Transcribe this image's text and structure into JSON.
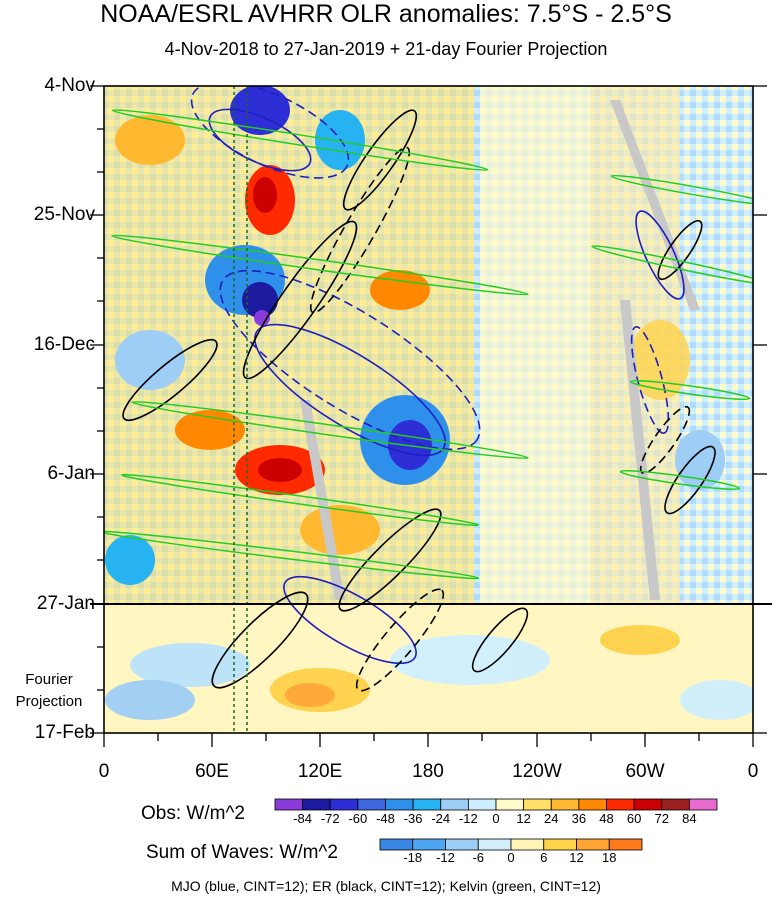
{
  "chart_data": {
    "type": "heatmap",
    "title": "NOAA/ESRL AVHRR OLR anomalies: 7.5°S - 2.5°S",
    "subtitle": "4-Nov-2018 to 27-Jan-2019 + 21-day Fourier Projection",
    "x_axis": {
      "ticks": [
        "0",
        "60E",
        "120E",
        "180",
        "120W",
        "60W",
        "0"
      ],
      "range": [
        0,
        360
      ],
      "unit": "longitude (deg)"
    },
    "y_axis": {
      "ticks": [
        "4-Nov",
        "25-Nov",
        "16-Dec",
        "6-Jan",
        "27-Jan",
        "17-Feb"
      ],
      "projection_label_line1": "Fourier",
      "projection_label_line2": "Projection",
      "observation_end": "27-Jan"
    },
    "obs_colorbar": {
      "label": "Obs: W/m^2",
      "levels": [
        "-84",
        "-72",
        "-60",
        "-48",
        "-36",
        "-24",
        "-12",
        "0",
        "12",
        "24",
        "36",
        "48",
        "60",
        "72",
        "84"
      ],
      "colors": [
        "#8a3cdb",
        "#1c1a9e",
        "#2e2ed6",
        "#3e68e0",
        "#2f90ec",
        "#27b3f2",
        "#9ecdf5",
        "#cfefff",
        "#fffac9",
        "#ffe066",
        "#ffb830",
        "#ff8800",
        "#ff2a00",
        "#cc0000",
        "#9a2020",
        "#e86ccf"
      ]
    },
    "waves_colorbar": {
      "label": "Sum of Waves: W/m^2",
      "levels": [
        "-18",
        "-12",
        "-6",
        "0",
        "6",
        "12",
        "18"
      ],
      "colors": [
        "#3a86e3",
        "#4fa6f0",
        "#9ccff5",
        "#d3efff",
        "#fff3b8",
        "#ffd24a",
        "#ffa533",
        "#ff7a1a"
      ]
    },
    "overlays": [
      {
        "name": "MJO",
        "color": "#1f1fbf",
        "cint": 12
      },
      {
        "name": "ER",
        "color": "#000000",
        "cint": 12
      },
      {
        "name": "Kelvin",
        "color": "#22cc22",
        "cint": 12
      }
    ],
    "footer": "MJO (blue, CINT=12); ER (black, CINT=12); Kelvin (green, CINT=12)"
  }
}
